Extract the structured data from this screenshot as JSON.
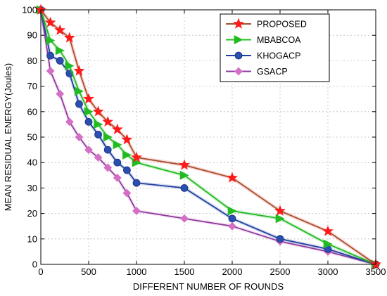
{
  "chart_data": {
    "type": "line",
    "title": "",
    "xlabel": "DIFFERENT NUMBER OF ROUNDS",
    "ylabel": "MEAN RESIDUAL ENERGY(Joules)",
    "xlim": [
      0,
      3500
    ],
    "ylim": [
      0,
      100
    ],
    "xticks": [
      0,
      500,
      1000,
      1500,
      2000,
      2500,
      3000,
      3500
    ],
    "yticks": [
      0,
      10,
      20,
      30,
      40,
      50,
      60,
      70,
      80,
      90,
      100
    ],
    "grid": true,
    "legend_position": "top-right",
    "series": [
      {
        "name": "PROPOSED",
        "color": "#ff1a1a",
        "line_color": "#a0522d",
        "marker": "star",
        "x": [
          0,
          100,
          200,
          300,
          400,
          500,
          600,
          700,
          800,
          900,
          1000,
          1500,
          2000,
          2500,
          3000,
          3500
        ],
        "y": [
          100,
          95,
          92,
          89,
          76,
          65,
          60,
          56,
          53,
          49,
          42,
          39,
          34,
          21,
          13,
          0
        ]
      },
      {
        "name": "MBABCOA",
        "color": "#22bb22",
        "line_color": "#22bb22",
        "marker": "triangle-right",
        "x": [
          0,
          100,
          200,
          300,
          400,
          500,
          600,
          700,
          800,
          900,
          1000,
          1500,
          2000,
          2500,
          3000,
          3500
        ],
        "y": [
          100,
          88,
          84,
          78,
          68,
          60,
          55,
          50,
          47,
          43,
          40,
          35,
          21,
          18,
          8,
          0
        ]
      },
      {
        "name": "KHOGACP",
        "color": "#2a4fb0",
        "line_color": "#1f3f9f",
        "marker": "circle",
        "x": [
          0,
          100,
          200,
          300,
          400,
          500,
          600,
          700,
          800,
          900,
          1000,
          1500,
          2000,
          2500,
          3000,
          3500
        ],
        "y": [
          100,
          82,
          80,
          75,
          63,
          56,
          51,
          45,
          40,
          37,
          32,
          30,
          18,
          10,
          6,
          0
        ]
      },
      {
        "name": "GSACP",
        "color": "#d36fc4",
        "line_color": "#8e3a9e",
        "marker": "diamond",
        "x": [
          0,
          100,
          200,
          300,
          400,
          500,
          600,
          700,
          800,
          900,
          1000,
          1500,
          2000,
          2500,
          3000,
          3500
        ],
        "y": [
          100,
          76,
          67,
          56,
          50,
          45,
          42,
          38,
          34,
          28,
          21,
          18,
          15,
          9,
          5,
          0
        ]
      }
    ]
  }
}
